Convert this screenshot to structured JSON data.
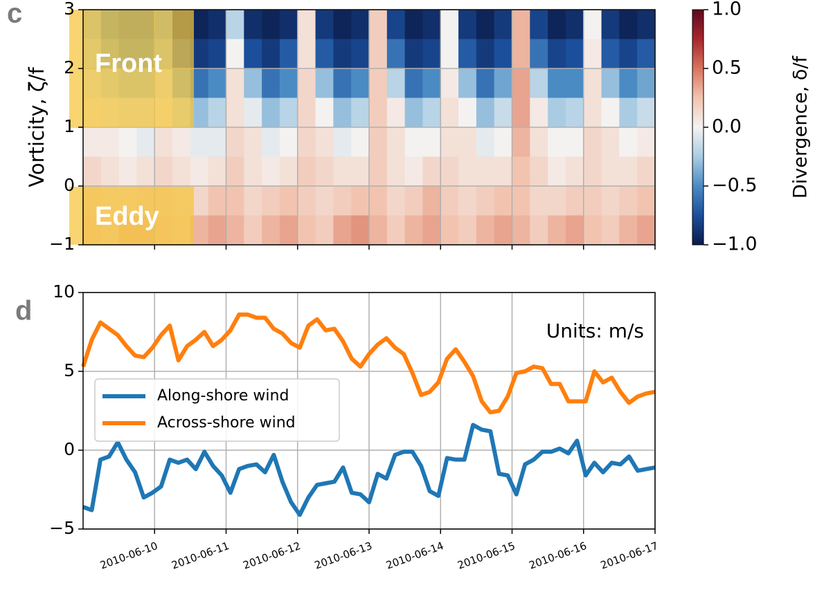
{
  "chart_data": [
    {
      "type": "heatmap",
      "panel_label": "c",
      "ylabel": "Vorticity, ζ/f",
      "ylim": [
        -1,
        3
      ],
      "yticks": [
        {
          "value": -1,
          "label": "−1"
        },
        0,
        1,
        2,
        3
      ],
      "grid": true,
      "z": [
        [
          -0.3,
          -0.5,
          -0.6,
          -0.6,
          -0.4,
          -0.9,
          -0.95,
          -0.9,
          -0.2,
          -0.9,
          -0.95,
          -0.9,
          0.1,
          -0.85,
          -0.95,
          -0.9,
          0.2,
          -0.8,
          -0.95,
          -0.9,
          0.0,
          -0.85,
          -0.95,
          -0.85,
          0.3,
          -0.8,
          -0.95,
          -0.9,
          0.0,
          -0.85,
          -0.95,
          -0.9
        ],
        [
          -0.2,
          -0.4,
          -0.5,
          -0.5,
          -0.3,
          -0.7,
          -0.85,
          -0.8,
          0.0,
          -0.75,
          -0.85,
          -0.7,
          0.1,
          -0.7,
          -0.85,
          -0.8,
          0.2,
          -0.6,
          -0.85,
          -0.8,
          0.0,
          -0.7,
          -0.85,
          -0.75,
          0.3,
          -0.6,
          -0.8,
          -0.75,
          0.05,
          -0.7,
          -0.8,
          -0.7
        ],
        [
          -0.1,
          -0.2,
          -0.3,
          -0.3,
          -0.1,
          -0.4,
          -0.6,
          -0.5,
          0.1,
          -0.3,
          -0.6,
          -0.5,
          0.15,
          -0.3,
          -0.6,
          -0.5,
          0.2,
          -0.2,
          -0.6,
          -0.5,
          0.05,
          -0.3,
          -0.6,
          -0.4,
          0.35,
          -0.2,
          -0.5,
          -0.5,
          0.1,
          -0.3,
          -0.5,
          -0.4
        ],
        [
          0.05,
          -0.05,
          -0.1,
          -0.1,
          0.05,
          -0.15,
          -0.3,
          -0.2,
          0.1,
          -0.05,
          -0.3,
          -0.2,
          0.15,
          0.0,
          -0.3,
          -0.2,
          0.2,
          0.05,
          -0.3,
          -0.2,
          0.1,
          0.0,
          -0.3,
          -0.15,
          0.35,
          0.05,
          -0.25,
          -0.2,
          0.1,
          0.0,
          -0.25,
          -0.15
        ],
        [
          0.05,
          0.05,
          0.0,
          -0.05,
          0.1,
          0.05,
          -0.05,
          -0.05,
          0.15,
          0.1,
          -0.05,
          0.0,
          0.15,
          0.1,
          -0.05,
          0.0,
          0.2,
          0.1,
          0.0,
          0.0,
          0.1,
          0.1,
          -0.05,
          0.0,
          0.3,
          0.1,
          0.0,
          0.0,
          0.15,
          0.1,
          0.0,
          0.05
        ],
        [
          0.15,
          0.1,
          0.05,
          0.1,
          0.15,
          0.1,
          0.05,
          0.1,
          0.2,
          0.1,
          0.05,
          0.1,
          0.2,
          0.15,
          0.1,
          0.1,
          0.2,
          0.1,
          0.05,
          0.15,
          0.15,
          0.1,
          0.1,
          0.1,
          0.25,
          0.15,
          0.05,
          0.1,
          0.15,
          0.1,
          0.1,
          0.15
        ],
        [
          0.2,
          0.15,
          0.15,
          0.2,
          0.2,
          0.15,
          0.15,
          0.25,
          0.25,
          0.15,
          0.2,
          0.25,
          0.2,
          0.15,
          0.2,
          0.25,
          0.25,
          0.15,
          0.2,
          0.3,
          0.2,
          0.15,
          0.2,
          0.25,
          0.25,
          0.15,
          0.15,
          0.2,
          0.2,
          0.15,
          0.2,
          0.25
        ],
        [
          0.25,
          0.2,
          0.3,
          0.3,
          0.25,
          0.2,
          0.3,
          0.35,
          0.3,
          0.2,
          0.3,
          0.35,
          0.25,
          0.2,
          0.35,
          0.4,
          0.3,
          0.2,
          0.3,
          0.35,
          0.25,
          0.2,
          0.3,
          0.35,
          0.3,
          0.2,
          0.3,
          0.35,
          0.25,
          0.2,
          0.3,
          0.35
        ]
      ],
      "colorscale": [
        "#0b1a4a",
        "#1b4f9c",
        "#4a8bc4",
        "#a9cce3",
        "#f4f2f1",
        "#f2c4b0",
        "#d9745d",
        "#a8262d",
        "#5c0a1e"
      ],
      "colorbar": {
        "label": "Divergence, δ/f",
        "lim": [
          -1.0,
          1.0
        ],
        "ticks": [
          {
            "value": -1.0,
            "label": "−1.0"
          },
          {
            "value": -0.5,
            "label": "−0.5"
          },
          {
            "value": 0.0,
            "label": "0.0"
          },
          {
            "value": 0.5,
            "label": "0.5"
          },
          {
            "value": 1.0,
            "label": "1.0"
          }
        ]
      },
      "annotations": [
        "Front",
        "Eddy"
      ]
    },
    {
      "type": "line",
      "panel_label": "d",
      "ylim": [
        -5,
        10
      ],
      "yticks": [
        {
          "value": -5,
          "label": "−5"
        },
        0,
        5,
        10
      ],
      "xticks": [
        "2010-06-10",
        "2010-06-11",
        "2010-06-12",
        "2010-06-13",
        "2010-06-14",
        "2010-06-15",
        "2010-06-16",
        "2010-06-17"
      ],
      "grid": true,
      "legend": "center left",
      "annotation": "Units: m/s",
      "series": [
        {
          "name": "Along-shore wind",
          "color": "#1f77b4",
          "values": [
            -3.6,
            -3.8,
            -0.6,
            -0.4,
            0.5,
            -0.6,
            -1.4,
            -3.0,
            -2.7,
            -2.3,
            -0.6,
            -0.8,
            -0.6,
            -1.2,
            -0.1,
            -1.0,
            -1.6,
            -2.7,
            -1.2,
            -1.0,
            -0.9,
            -1.4,
            -0.3,
            -2.0,
            -3.3,
            -4.1,
            -3.0,
            -2.2,
            -2.1,
            -2.0,
            -1.1,
            -2.7,
            -2.8,
            -3.3,
            -1.5,
            -1.8,
            -0.3,
            -0.1,
            -0.1,
            -1.0,
            -2.6,
            -2.9,
            -0.5,
            -0.6,
            -0.6,
            1.6,
            1.3,
            1.2,
            -1.5,
            -1.6,
            -2.8,
            -0.9,
            -0.6,
            -0.1,
            -0.1,
            0.1,
            -0.2,
            0.6,
            -1.6,
            -0.8,
            -1.4,
            -0.8,
            -0.9,
            -0.4,
            -1.3,
            -1.2,
            -1.1
          ]
        },
        {
          "name": "Across-shore wind",
          "color": "#ff7f0e",
          "values": [
            5.3,
            7.0,
            8.1,
            7.7,
            7.3,
            6.6,
            6.0,
            5.9,
            6.5,
            7.3,
            7.9,
            5.7,
            6.6,
            7.0,
            7.5,
            6.6,
            7.0,
            7.6,
            8.6,
            8.6,
            8.4,
            8.4,
            7.7,
            7.4,
            6.8,
            6.5,
            7.9,
            8.3,
            7.6,
            7.7,
            6.9,
            5.8,
            5.3,
            6.1,
            6.7,
            7.1,
            6.5,
            6.1,
            4.9,
            3.5,
            3.7,
            4.3,
            5.8,
            6.4,
            5.6,
            4.7,
            3.1,
            2.4,
            2.5,
            3.4,
            4.9,
            5.0,
            5.3,
            5.2,
            4.2,
            4.2,
            3.1,
            3.1,
            3.1,
            5.0,
            4.3,
            4.6,
            3.7,
            3.0,
            3.4,
            3.6,
            3.7
          ]
        }
      ]
    }
  ]
}
